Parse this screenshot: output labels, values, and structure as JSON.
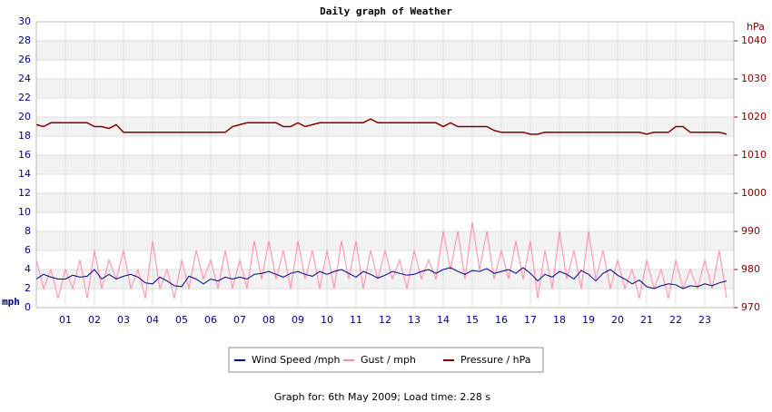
{
  "chart_data": {
    "type": "line",
    "title": "Daily graph of Weather",
    "y_label": "mph",
    "y2_label": "hPa",
    "footer": "Graph for: 6th May 2009; Load time: 2.28 s",
    "grid": true,
    "xlim": [
      0,
      24
    ],
    "xticks": [
      {
        "value": 1,
        "label": "01"
      },
      {
        "value": 2,
        "label": "02"
      },
      {
        "value": 3,
        "label": "03"
      },
      {
        "value": 4,
        "label": "04"
      },
      {
        "value": 5,
        "label": "05"
      },
      {
        "value": 6,
        "label": "06"
      },
      {
        "value": 7,
        "label": "07"
      },
      {
        "value": 8,
        "label": "08"
      },
      {
        "value": 9,
        "label": "09"
      },
      10,
      11,
      12,
      13,
      14,
      15,
      16,
      17,
      18,
      19,
      20,
      21,
      22,
      23
    ],
    "ylim": [
      0,
      30
    ],
    "yticks": [
      0,
      2,
      4,
      6,
      8,
      10,
      12,
      14,
      16,
      18,
      20,
      22,
      24,
      26,
      28,
      30
    ],
    "y2lim": [
      970,
      1045
    ],
    "y2ticks": [
      970,
      980,
      990,
      1000,
      1010,
      1020,
      1030,
      1040
    ],
    "x": [
      0,
      0.25,
      0.5,
      0.75,
      1,
      1.25,
      1.5,
      1.75,
      2,
      2.25,
      2.5,
      2.75,
      3,
      3.25,
      3.5,
      3.75,
      4,
      4.25,
      4.5,
      4.75,
      5,
      5.25,
      5.5,
      5.75,
      6,
      6.25,
      6.5,
      6.75,
      7,
      7.25,
      7.5,
      7.75,
      8,
      8.25,
      8.5,
      8.75,
      9,
      9.25,
      9.5,
      9.75,
      10,
      10.25,
      10.5,
      10.75,
      11,
      11.25,
      11.5,
      11.75,
      12,
      12.25,
      12.5,
      12.75,
      13,
      13.25,
      13.5,
      13.75,
      14,
      14.25,
      14.5,
      14.75,
      15,
      15.25,
      15.5,
      15.75,
      16,
      16.25,
      16.5,
      16.75,
      17,
      17.25,
      17.5,
      17.75,
      18,
      18.25,
      18.5,
      18.75,
      19,
      19.25,
      19.5,
      19.75,
      20,
      20.25,
      20.5,
      20.75,
      21,
      21.25,
      21.5,
      21.75,
      22,
      22.25,
      22.5,
      22.75,
      23,
      23.25,
      23.5,
      23.75
    ],
    "series": [
      {
        "name": "Wind Speed /mph",
        "color": "#000080",
        "values": [
          3,
          3.5,
          3.2,
          3,
          3,
          3.4,
          3.2,
          3.3,
          4,
          3,
          3.5,
          3,
          3.3,
          3.5,
          3.2,
          2.6,
          2.5,
          3.2,
          2.8,
          2.3,
          2.2,
          3.3,
          3,
          2.5,
          3,
          2.8,
          3.2,
          3,
          3.2,
          3,
          3.5,
          3.6,
          3.8,
          3.5,
          3.2,
          3.6,
          3.8,
          3.5,
          3.3,
          3.8,
          3.5,
          3.8,
          4,
          3.6,
          3.2,
          3.8,
          3.5,
          3.1,
          3.4,
          3.8,
          3.6,
          3.4,
          3.5,
          3.8,
          4,
          3.6,
          4,
          4.2,
          3.8,
          3.5,
          3.9,
          3.8,
          4.1,
          3.6,
          3.8,
          4,
          3.6,
          4.2,
          3.6,
          2.8,
          3.5,
          3.2,
          3.8,
          3.5,
          3,
          3.9,
          3.5,
          2.8,
          3.6,
          4,
          3.4,
          3,
          2.5,
          2.9,
          2.2,
          2,
          2.3,
          2.5,
          2.4,
          2,
          2.3,
          2.2,
          2.5,
          2.3,
          2.6,
          2.8
        ]
      },
      {
        "name": "Gust / mph",
        "color": "#ff88aa",
        "values": [
          5,
          2,
          4,
          1,
          4,
          2,
          5,
          1,
          6,
          2,
          5,
          3,
          6,
          2,
          4,
          1,
          7,
          2,
          4,
          1,
          5,
          2,
          6,
          3,
          5,
          2,
          6,
          2,
          5,
          2,
          7,
          3,
          7,
          3,
          6,
          2,
          7,
          3,
          6,
          2,
          6,
          2,
          7,
          3,
          7,
          2,
          6,
          3,
          6,
          3,
          5,
          2,
          6,
          3,
          5,
          3,
          8,
          4,
          8,
          3,
          9,
          4,
          8,
          3,
          6,
          3,
          7,
          3,
          7,
          1,
          6,
          2,
          8,
          3,
          6,
          2,
          8,
          3,
          6,
          2,
          5,
          2,
          4,
          1,
          5,
          2,
          4,
          1,
          5,
          2,
          4,
          2,
          5,
          2,
          6,
          1
        ]
      },
      {
        "name": "Pressure / hPa",
        "color": "#800000",
        "axis": "y2",
        "values": [
          1018,
          1017.5,
          1018.5,
          1018.5,
          1018.5,
          1018.5,
          1018.5,
          1018.5,
          1017.5,
          1017.5,
          1017,
          1018,
          1016,
          1016,
          1016,
          1016,
          1016,
          1016,
          1016,
          1016,
          1016,
          1016,
          1016,
          1016,
          1016,
          1016,
          1016,
          1017.5,
          1018,
          1018.5,
          1018.5,
          1018.5,
          1018.5,
          1018.5,
          1017.5,
          1017.5,
          1018.5,
          1017.5,
          1018,
          1018.5,
          1018.5,
          1018.5,
          1018.5,
          1018.5,
          1018.5,
          1018.5,
          1019.5,
          1018.5,
          1018.5,
          1018.5,
          1018.5,
          1018.5,
          1018.5,
          1018.5,
          1018.5,
          1018.5,
          1017.5,
          1018.5,
          1017.5,
          1017.5,
          1017.5,
          1017.5,
          1017.5,
          1016.5,
          1016,
          1016,
          1016,
          1016,
          1015.5,
          1015.5,
          1016,
          1016,
          1016,
          1016,
          1016,
          1016,
          1016,
          1016,
          1016,
          1016,
          1016,
          1016,
          1016,
          1016,
          1015.5,
          1016,
          1016,
          1016,
          1017.5,
          1017.5,
          1016,
          1016,
          1016,
          1016,
          1016,
          1015.5
        ]
      }
    ]
  }
}
